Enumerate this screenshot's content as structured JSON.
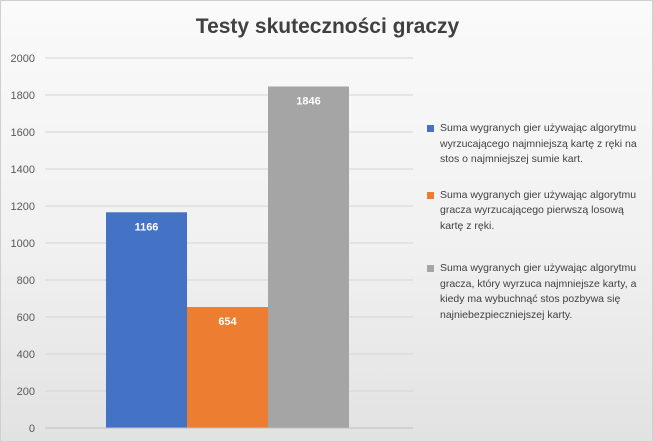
{
  "chart_data": {
    "type": "bar",
    "title": "Testy skuteczności graczy",
    "xlabel": "",
    "ylabel": "",
    "ylim": [
      0,
      2000
    ],
    "yticks": [
      0,
      200,
      400,
      600,
      800,
      1000,
      1200,
      1400,
      1600,
      1800,
      2000
    ],
    "grid": true,
    "legend_position": "right",
    "series": [
      {
        "name": "Suma wygranych gier używając algorytmu wyrzucającego najmniejszą kartę z ręki na stos o najmniejszej sumie kart.",
        "value": 1166,
        "color": "#4472C4"
      },
      {
        "name": "Suma wygranych gier używając algorytmu gracza wyrzucającego pierwszą losową kartę z ręki.",
        "value": 654,
        "color": "#ED7D31"
      },
      {
        "name": "Suma wygranych gier używając algorytmu gracza, który wyrzuca najmniejsze karty, a kiedy ma wybuchnąć stos pozbywa się najniebezpieczniejszej karty.",
        "value": 1846,
        "color": "#A5A5A5"
      }
    ]
  }
}
